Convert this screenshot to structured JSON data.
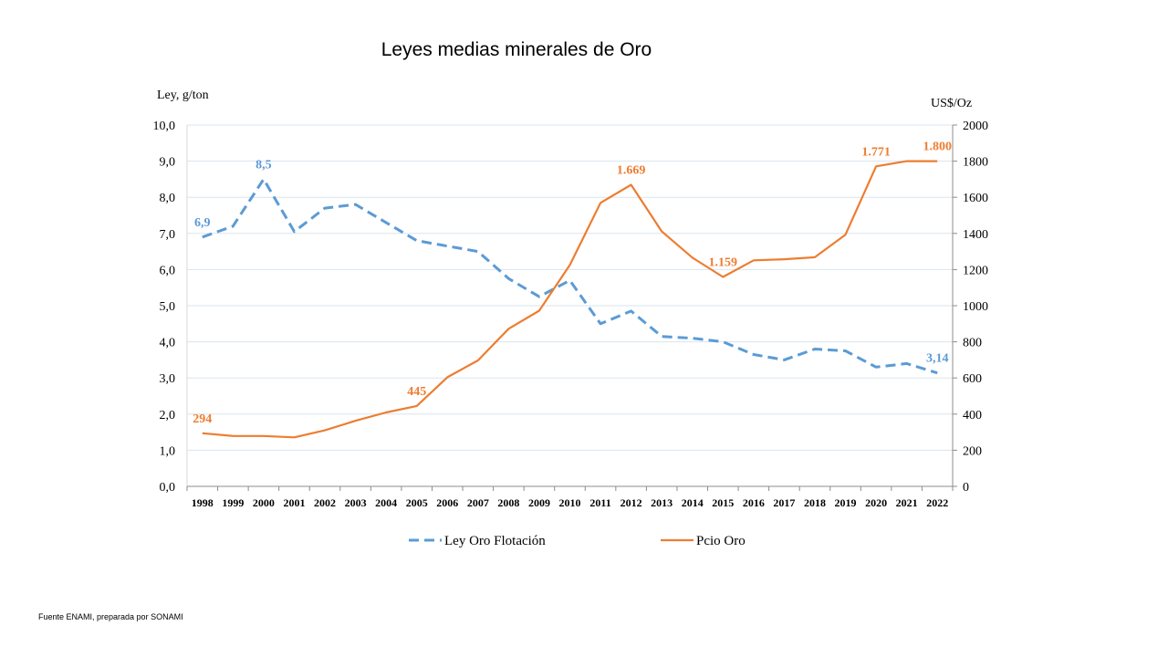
{
  "chart_data": {
    "type": "line",
    "title": "Leyes medias minerales de Oro",
    "y_left_label": "Ley, g/ton",
    "y_right_label": "US$/Oz",
    "y_left_lim": [
      0,
      10
    ],
    "y_right_lim": [
      0,
      2000
    ],
    "y_left_ticks": [
      "0,0",
      "1,0",
      "2,0",
      "3,0",
      "4,0",
      "5,0",
      "6,0",
      "7,0",
      "8,0",
      "9,0",
      "10,0"
    ],
    "y_right_ticks": [
      "0",
      "200",
      "400",
      "600",
      "800",
      "1000",
      "1200",
      "1400",
      "1600",
      "1800",
      "2000"
    ],
    "x": [
      "1998",
      "1999",
      "2000",
      "2001",
      "2002",
      "2003",
      "2004",
      "2005",
      "2006",
      "2007",
      "2008",
      "2009",
      "2010",
      "2011",
      "2012",
      "2013",
      "2014",
      "2015",
      "2016",
      "2017",
      "2018",
      "2019",
      "2020",
      "2021",
      "2022"
    ],
    "series": [
      {
        "name": "Ley Oro Flotación",
        "axis": "left",
        "color": "#5b9bd5",
        "style": "dashed",
        "values": [
          6.9,
          7.2,
          8.5,
          7.05,
          7.7,
          7.8,
          7.3,
          6.8,
          6.65,
          6.5,
          5.75,
          5.25,
          5.7,
          4.5,
          4.85,
          4.15,
          4.1,
          4.0,
          3.65,
          3.5,
          3.8,
          3.75,
          3.3,
          3.4,
          3.14
        ]
      },
      {
        "name": "Pcio Oro",
        "axis": "right",
        "color": "#ed7d31",
        "style": "solid",
        "values": [
          294,
          279,
          279,
          271,
          310,
          363,
          409,
          445,
          604,
          697,
          872,
          972,
          1225,
          1569,
          1669,
          1411,
          1266,
          1159,
          1251,
          1257,
          1268,
          1393,
          1771,
          1800,
          1800
        ]
      }
    ],
    "annotations": [
      {
        "series": 0,
        "index": 0,
        "text": "6,9"
      },
      {
        "series": 0,
        "index": 2,
        "text": "8,5"
      },
      {
        "series": 0,
        "index": 24,
        "text": "3,14"
      },
      {
        "series": 1,
        "index": 0,
        "text": "294"
      },
      {
        "series": 1,
        "index": 7,
        "text": "445"
      },
      {
        "series": 1,
        "index": 14,
        "text": "1.669"
      },
      {
        "series": 1,
        "index": 17,
        "text": "1.159"
      },
      {
        "series": 1,
        "index": 22,
        "text": "1.771"
      },
      {
        "series": 1,
        "index": 24,
        "text": "1.800"
      }
    ],
    "grid": true,
    "legend_position": "bottom"
  },
  "footer": {
    "source": "Fuente ENAMI, preparada por SONAMI"
  }
}
